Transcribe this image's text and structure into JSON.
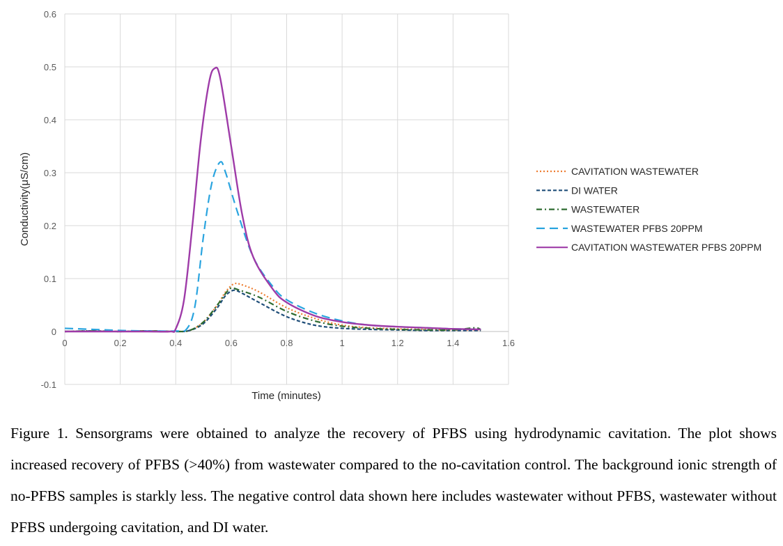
{
  "chart_data": {
    "type": "line",
    "title": "",
    "xlabel": "Time (minutes)",
    "ylabel": "Conductivity(μS/cm)",
    "xlim": [
      0,
      1.6
    ],
    "ylim": [
      -0.1,
      0.6
    ],
    "x_ticks": [
      "0",
      "0.2",
      "0.4",
      "0.6",
      "0.8",
      "1",
      "1.2",
      "1.4",
      "1.6"
    ],
    "y_ticks": [
      "-0.1",
      "0",
      "0.1",
      "0.2",
      "0.3",
      "0.4",
      "0.5",
      "0.6"
    ],
    "grid": true,
    "legend_position": "right",
    "series": [
      {
        "name": "CAVITATION WASTEWATER",
        "color": "#ED7D31",
        "dash": "dotted",
        "points": [
          [
            0,
            0
          ],
          [
            0.1,
            0.001
          ],
          [
            0.2,
            0
          ],
          [
            0.3,
            0.001
          ],
          [
            0.4,
            0
          ],
          [
            0.45,
            0.002
          ],
          [
            0.5,
            0.018
          ],
          [
            0.55,
            0.05
          ],
          [
            0.58,
            0.075
          ],
          [
            0.61,
            0.09
          ],
          [
            0.64,
            0.088
          ],
          [
            0.7,
            0.075
          ],
          [
            0.8,
            0.045
          ],
          [
            0.9,
            0.025
          ],
          [
            1.0,
            0.012
          ],
          [
            1.1,
            0.007
          ],
          [
            1.2,
            0.005
          ],
          [
            1.3,
            0.004
          ],
          [
            1.4,
            0.003
          ],
          [
            1.5,
            0.003
          ]
        ]
      },
      {
        "name": "DI WATER",
        "color": "#1F4E79",
        "dash": "dashed",
        "points": [
          [
            0,
            0
          ],
          [
            0.1,
            0.001
          ],
          [
            0.2,
            0
          ],
          [
            0.3,
            0.001
          ],
          [
            0.4,
            0
          ],
          [
            0.45,
            0.002
          ],
          [
            0.5,
            0.015
          ],
          [
            0.55,
            0.045
          ],
          [
            0.58,
            0.068
          ],
          [
            0.61,
            0.078
          ],
          [
            0.64,
            0.072
          ],
          [
            0.7,
            0.055
          ],
          [
            0.8,
            0.028
          ],
          [
            0.9,
            0.012
          ],
          [
            1.0,
            0.006
          ],
          [
            1.1,
            0.004
          ],
          [
            1.2,
            0.003
          ],
          [
            1.3,
            0.002
          ],
          [
            1.4,
            0.002
          ],
          [
            1.5,
            0.002
          ]
        ]
      },
      {
        "name": "WASTEWATER",
        "color": "#2E6B30",
        "dash": "dashdot",
        "points": [
          [
            0,
            0
          ],
          [
            0.1,
            0.001
          ],
          [
            0.2,
            0
          ],
          [
            0.3,
            0.001
          ],
          [
            0.4,
            0
          ],
          [
            0.45,
            0.002
          ],
          [
            0.5,
            0.018
          ],
          [
            0.55,
            0.05
          ],
          [
            0.58,
            0.072
          ],
          [
            0.6,
            0.082
          ],
          [
            0.63,
            0.078
          ],
          [
            0.7,
            0.065
          ],
          [
            0.8,
            0.038
          ],
          [
            0.9,
            0.02
          ],
          [
            1.0,
            0.01
          ],
          [
            1.1,
            0.006
          ],
          [
            1.2,
            0.004
          ],
          [
            1.3,
            0.003
          ],
          [
            1.4,
            0.003
          ],
          [
            1.48,
            0.007
          ],
          [
            1.5,
            0.003
          ]
        ]
      },
      {
        "name": "WASTEWATER PFBS 20PPM",
        "color": "#2AA4DF",
        "dash": "longdash",
        "points": [
          [
            0,
            0.006
          ],
          [
            0.1,
            0.004
          ],
          [
            0.2,
            0.002
          ],
          [
            0.3,
            0.001
          ],
          [
            0.4,
            0.001
          ],
          [
            0.44,
            0.005
          ],
          [
            0.47,
            0.05
          ],
          [
            0.5,
            0.18
          ],
          [
            0.53,
            0.28
          ],
          [
            0.56,
            0.32
          ],
          [
            0.58,
            0.3
          ],
          [
            0.62,
            0.23
          ],
          [
            0.68,
            0.14
          ],
          [
            0.75,
            0.085
          ],
          [
            0.8,
            0.06
          ],
          [
            0.9,
            0.035
          ],
          [
            1.0,
            0.02
          ],
          [
            1.1,
            0.012
          ],
          [
            1.2,
            0.009
          ],
          [
            1.3,
            0.007
          ],
          [
            1.4,
            0.005
          ],
          [
            1.5,
            0.004
          ]
        ]
      },
      {
        "name": "CAVITATION WASTEWATER PFBS 20PPM",
        "color": "#9E3BA8",
        "dash": "solid",
        "points": [
          [
            0,
            0
          ],
          [
            0.1,
            0
          ],
          [
            0.2,
            0
          ],
          [
            0.3,
            0
          ],
          [
            0.38,
            0
          ],
          [
            0.4,
            0.005
          ],
          [
            0.43,
            0.06
          ],
          [
            0.46,
            0.2
          ],
          [
            0.49,
            0.36
          ],
          [
            0.52,
            0.47
          ],
          [
            0.54,
            0.497
          ],
          [
            0.56,
            0.48
          ],
          [
            0.6,
            0.35
          ],
          [
            0.64,
            0.22
          ],
          [
            0.68,
            0.14
          ],
          [
            0.75,
            0.08
          ],
          [
            0.8,
            0.055
          ],
          [
            0.9,
            0.03
          ],
          [
            1.0,
            0.018
          ],
          [
            1.1,
            0.012
          ],
          [
            1.2,
            0.009
          ],
          [
            1.3,
            0.007
          ],
          [
            1.4,
            0.005
          ],
          [
            1.5,
            0.004
          ]
        ]
      }
    ]
  },
  "caption": {
    "text": "Figure 1. Sensorgrams were obtained to analyze the recovery of PFBS using hydrodynamic cavitation. The plot shows increased recovery of PFBS (>40%) from wastewater compared to the no-cavitation control. The background ionic strength of no-PFBS samples is starkly less. The negative control data shown here includes wastewater without PFBS, wastewater without PFBS undergoing cavitation, and DI water."
  }
}
